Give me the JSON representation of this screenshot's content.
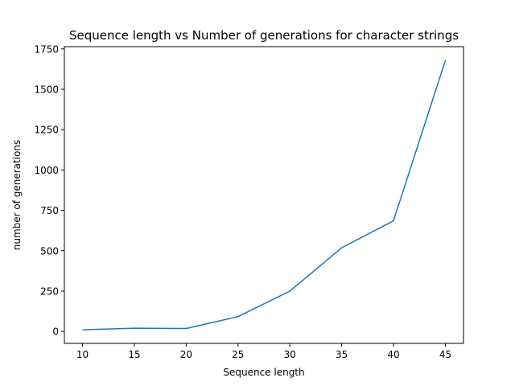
{
  "chart_data": {
    "type": "line",
    "title": "Sequence length vs Number of generations for character strings",
    "xlabel": "Sequence length",
    "ylabel": "number of generations",
    "x": [
      10,
      15,
      20,
      25,
      30,
      35,
      40,
      45
    ],
    "series": [
      {
        "values": [
          10,
          20,
          18,
          92,
          250,
          518,
          685,
          1680
        ]
      }
    ],
    "xlim": [
      8.25,
      46.75
    ],
    "ylim": [
      -74,
      1764
    ],
    "xticks": [
      10,
      15,
      20,
      25,
      30,
      35,
      40,
      45
    ],
    "yticks": [
      0,
      250,
      500,
      750,
      1000,
      1250,
      1500,
      1750
    ],
    "grid": false,
    "line_color": "#1f77b4"
  }
}
